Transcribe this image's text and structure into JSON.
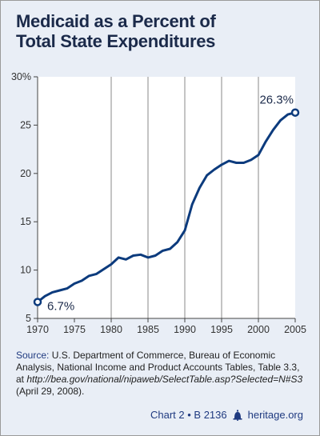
{
  "title": {
    "line1": "Medicaid as a Percent of",
    "line2": "Total State Expenditures"
  },
  "chart_data": {
    "type": "line",
    "title": "Medicaid as a Percent of Total State Expenditures",
    "xlabel": "",
    "ylabel": "",
    "xlim": [
      1970,
      2005
    ],
    "ylim": [
      5,
      30
    ],
    "x_ticks": [
      1970,
      1975,
      1980,
      1985,
      1990,
      1995,
      2000,
      2005
    ],
    "y_ticks": [
      5,
      10,
      15,
      20,
      25,
      30
    ],
    "y_tick_labels": [
      "5",
      "10",
      "15",
      "20",
      "25",
      "30%"
    ],
    "grid": "vertical gridlines at 1980, 1985, 1990, 1995, 2000",
    "line_color": "#0c3b7d",
    "series": [
      {
        "x": [
          1970,
          1971,
          1972,
          1973,
          1974,
          1975,
          1976,
          1977,
          1978,
          1979,
          1980,
          1981,
          1982,
          1983,
          1984,
          1985,
          1986,
          1987,
          1988,
          1989,
          1990,
          1991,
          1992,
          1993,
          1994,
          1995,
          1996,
          1997,
          1998,
          1999,
          2000,
          2001,
          2002,
          2003,
          2004,
          2005
        ],
        "y": [
          6.7,
          7.3,
          7.7,
          7.9,
          8.1,
          8.6,
          8.9,
          9.4,
          9.6,
          10.1,
          10.6,
          11.3,
          11.1,
          11.5,
          11.6,
          11.3,
          11.5,
          12.0,
          12.2,
          12.9,
          14.1,
          16.8,
          18.5,
          19.8,
          20.4,
          20.9,
          21.3,
          21.1,
          21.1,
          21.4,
          21.9,
          23.3,
          24.5,
          25.5,
          26.1,
          26.3
        ]
      }
    ],
    "annotations": [
      {
        "label": "6.7%",
        "x": 1970,
        "y": 6.7
      },
      {
        "label": "26.3%",
        "x": 2005,
        "y": 26.3
      }
    ]
  },
  "source": {
    "label": "Source:",
    "text": " U.S. Department of Commerce, Bureau of Economic Analysis, National Income and Product Accounts Tables, Table 3.3, at ",
    "url": "http://bea.gov/national/nipaweb/SelectTable.asp?Selected=N#S3",
    "tail": " (April 29, 2008)."
  },
  "footer": {
    "chart_id": "Chart 2 • B 2136",
    "site": "heritage.org",
    "logo_icon": "liberty-bell-icon"
  }
}
